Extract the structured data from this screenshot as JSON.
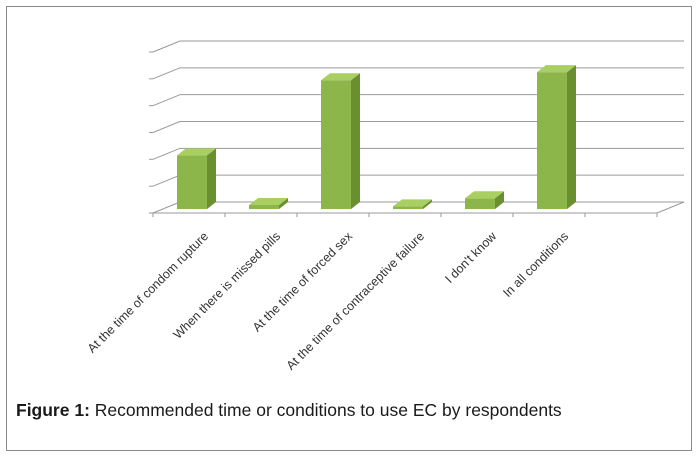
{
  "chart_data": {
    "type": "bar",
    "style": "3d-column",
    "categories": [
      "At the time of condom rupture",
      "When there is missed pills",
      "At the time of forced sex",
      "At the time of contraceptive failure",
      "I don't know",
      "In all conditions"
    ],
    "values": [
      20,
      1.5,
      48,
      1,
      4,
      51
    ],
    "ylim": [
      0,
      60
    ],
    "grid": true,
    "y_tick_labels_visible": false,
    "bar_color": "#8db64a",
    "bar_top_color": "#a9cf63",
    "bar_side_color": "#6a8f2f"
  },
  "caption": {
    "label": "Figure 1:",
    "text": " Recommended time or conditions to use EC by respondents"
  }
}
